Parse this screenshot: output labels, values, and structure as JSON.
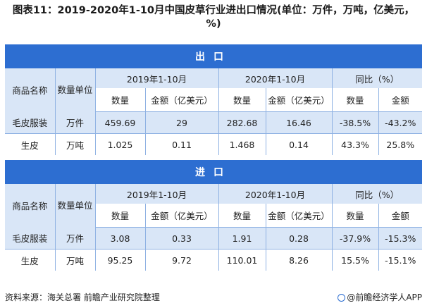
{
  "title": "图表11：2019-2020年1-10月中国皮草行业进出口情况(单位：万件，万吨，亿美元，%)",
  "export": {
    "section_label": "出口",
    "col_product": "商品名称",
    "col_unit": "数量单位",
    "period_2019": "2019年1-10月",
    "period_2020": "2020年1-10月",
    "yoy": "同比（%）",
    "qty": "数量",
    "amount": "金额（亿美元）",
    "qty_yoy": "数量",
    "amount_yoy": "金额",
    "rows": [
      {
        "name": "毛皮服装",
        "unit": "万件",
        "q2019": "459.69",
        "a2019": "29",
        "q2020": "282.68",
        "a2020": "16.46",
        "qy": "-38.5%",
        "ay": "-43.2%"
      },
      {
        "name": "生皮",
        "unit": "万吨",
        "q2019": "1.025",
        "a2019": "0.11",
        "q2020": "1.468",
        "a2020": "0.14",
        "qy": "43.3%",
        "ay": "25.8%"
      }
    ]
  },
  "import": {
    "section_label": "进口",
    "col_product": "商品名称",
    "col_unit": "数量单位",
    "period_2019": "2019年1-10月",
    "period_2020": "2020年1-10月",
    "yoy": "同比（%）",
    "qty": "数量",
    "amount": "金额（亿美元）",
    "qty_yoy": "数量",
    "amount_yoy": "金额",
    "rows": [
      {
        "name": "毛皮服装",
        "unit": "万件",
        "q2019": "3.08",
        "a2019": "0.33",
        "q2020": "1.91",
        "a2020": "0.28",
        "qy": "-37.9%",
        "ay": "-15.3%"
      },
      {
        "name": "生皮",
        "unit": "万吨",
        "q2019": "95.25",
        "a2019": "9.72",
        "q2020": "110.01",
        "a2020": "8.26",
        "qy": "15.5%",
        "ay": "-15.1%"
      }
    ]
  },
  "footer": {
    "source": "资料来源：海关总署 前瞻产业研究院整理",
    "brand": "@前瞻经济学人APP"
  },
  "colors": {
    "header_blue": "#2d6ed1",
    "light_blue": "#d9e6f7"
  }
}
